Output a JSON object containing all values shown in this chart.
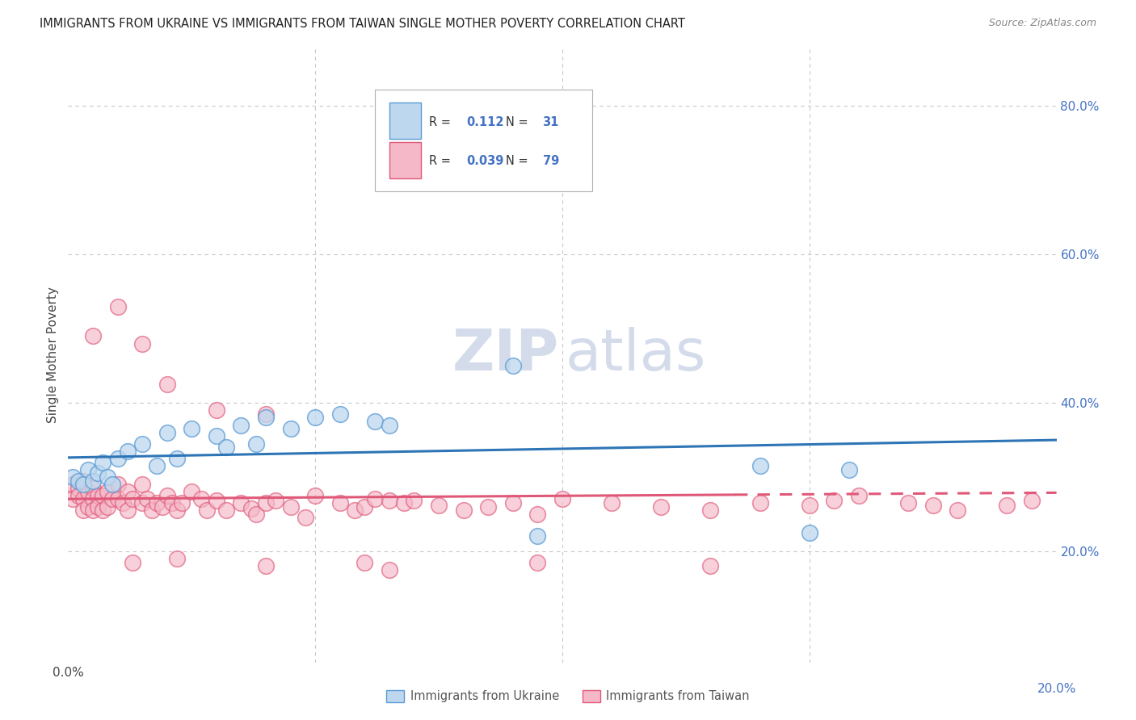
{
  "title": "IMMIGRANTS FROM UKRAINE VS IMMIGRANTS FROM TAIWAN SINGLE MOTHER POVERTY CORRELATION CHART",
  "source": "Source: ZipAtlas.com",
  "ylabel": "Single Mother Poverty",
  "xlim": [
    0.0,
    0.2
  ],
  "ylim": [
    0.05,
    0.88
  ],
  "ukraine_R": 0.112,
  "ukraine_N": 31,
  "taiwan_R": 0.039,
  "taiwan_N": 79,
  "ukraine_face": "#bdd7ee",
  "ukraine_edge": "#5b9bd5",
  "taiwan_face": "#f4b8c8",
  "taiwan_edge": "#e05878",
  "trendline_ukraine_color": "#2e75b6",
  "trendline_taiwan_color": "#e05878",
  "background_color": "#ffffff",
  "grid_color": "#c8c8c8",
  "ukraine_x": [
    0.001,
    0.002,
    0.003,
    0.004,
    0.005,
    0.006,
    0.007,
    0.008,
    0.009,
    0.01,
    0.012,
    0.015,
    0.018,
    0.02,
    0.022,
    0.025,
    0.03,
    0.032,
    0.035,
    0.038,
    0.04,
    0.045,
    0.05,
    0.055,
    0.062,
    0.065,
    0.09,
    0.095,
    0.14,
    0.15,
    0.158
  ],
  "ukraine_y": [
    0.3,
    0.295,
    0.29,
    0.31,
    0.295,
    0.305,
    0.32,
    0.3,
    0.29,
    0.325,
    0.335,
    0.345,
    0.315,
    0.36,
    0.325,
    0.365,
    0.355,
    0.34,
    0.37,
    0.345,
    0.38,
    0.365,
    0.38,
    0.385,
    0.375,
    0.37,
    0.45,
    0.22,
    0.315,
    0.225,
    0.31
  ],
  "taiwan_x": [
    0.001,
    0.001,
    0.002,
    0.002,
    0.003,
    0.003,
    0.003,
    0.004,
    0.004,
    0.005,
    0.005,
    0.005,
    0.006,
    0.006,
    0.007,
    0.007,
    0.008,
    0.008,
    0.009,
    0.01,
    0.01,
    0.011,
    0.012,
    0.012,
    0.013,
    0.015,
    0.015,
    0.016,
    0.017,
    0.018,
    0.019,
    0.02,
    0.021,
    0.022,
    0.023,
    0.025,
    0.027,
    0.028,
    0.03,
    0.032,
    0.035,
    0.037,
    0.038,
    0.04,
    0.042,
    0.045,
    0.048,
    0.05,
    0.055,
    0.058,
    0.06,
    0.062,
    0.065,
    0.068,
    0.07,
    0.075,
    0.08,
    0.085,
    0.09,
    0.095,
    0.1,
    0.11,
    0.12,
    0.13,
    0.14,
    0.15,
    0.155,
    0.16,
    0.17,
    0.175,
    0.18,
    0.19,
    0.195,
    0.005,
    0.01,
    0.015,
    0.02,
    0.03,
    0.04
  ],
  "taiwan_y": [
    0.29,
    0.27,
    0.285,
    0.275,
    0.295,
    0.27,
    0.255,
    0.28,
    0.26,
    0.285,
    0.27,
    0.255,
    0.275,
    0.26,
    0.275,
    0.255,
    0.28,
    0.26,
    0.27,
    0.29,
    0.27,
    0.265,
    0.28,
    0.255,
    0.27,
    0.265,
    0.29,
    0.27,
    0.255,
    0.265,
    0.26,
    0.275,
    0.265,
    0.255,
    0.265,
    0.28,
    0.27,
    0.255,
    0.268,
    0.255,
    0.265,
    0.258,
    0.25,
    0.265,
    0.268,
    0.26,
    0.245,
    0.275,
    0.265,
    0.255,
    0.26,
    0.27,
    0.268,
    0.265,
    0.268,
    0.262,
    0.255,
    0.26,
    0.265,
    0.25,
    0.27,
    0.265,
    0.26,
    0.255,
    0.265,
    0.262,
    0.268,
    0.275,
    0.265,
    0.262,
    0.255,
    0.262,
    0.268,
    0.49,
    0.53,
    0.48,
    0.425,
    0.39,
    0.385
  ],
  "taiwan_outlier_x": [
    0.013,
    0.022,
    0.04,
    0.095,
    0.06,
    0.065,
    0.13
  ],
  "taiwan_outlier_y": [
    0.185,
    0.19,
    0.18,
    0.185,
    0.185,
    0.175,
    0.18
  ]
}
